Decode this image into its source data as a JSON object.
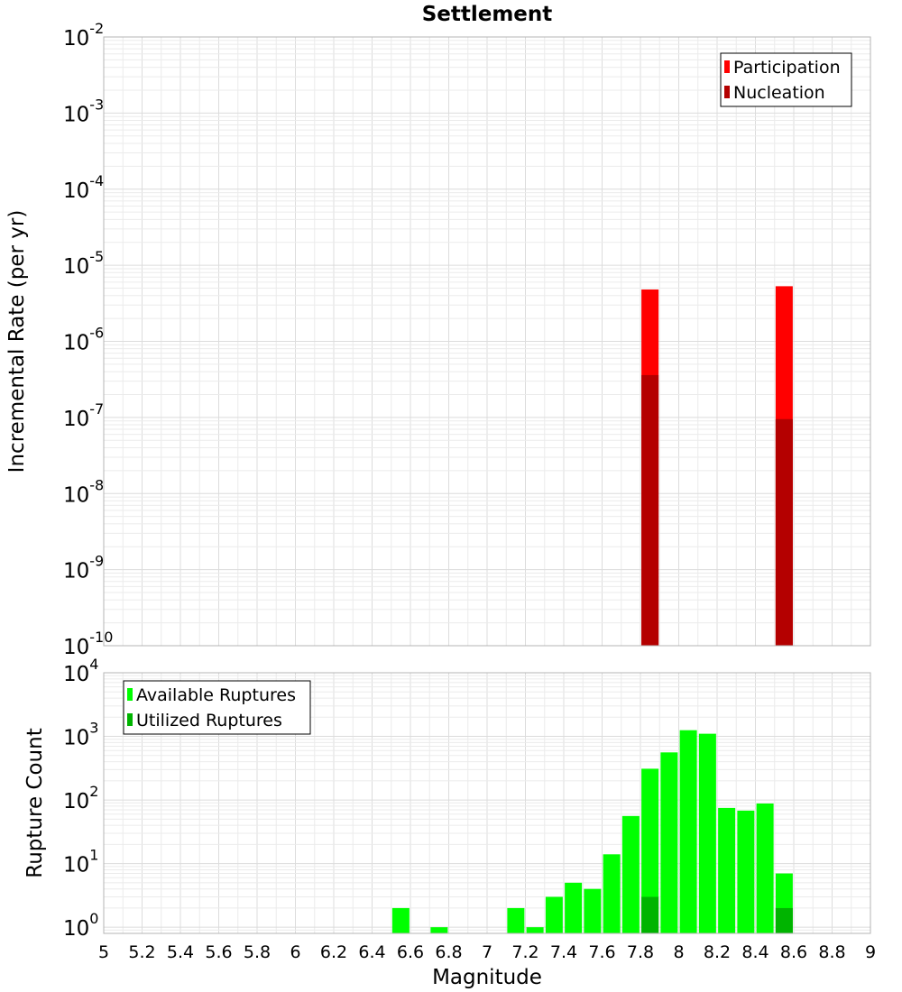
{
  "chart_data": [
    {
      "type": "bar",
      "title": "Settlement",
      "xlabel": "",
      "ylabel": "Incremental Rate (per yr)",
      "yscale": "log",
      "ylim": [
        1e-10,
        0.01
      ],
      "xlim": [
        5,
        9
      ],
      "grid": true,
      "legend_position": "top-right",
      "y_ticks": [
        {
          "base": "10",
          "exp": "-2",
          "value": 0.01
        },
        {
          "base": "10",
          "exp": "-3",
          "value": 0.001
        },
        {
          "base": "10",
          "exp": "-4",
          "value": 0.0001
        },
        {
          "base": "10",
          "exp": "-5",
          "value": 1e-05
        },
        {
          "base": "10",
          "exp": "-6",
          "value": 1e-06
        },
        {
          "base": "10",
          "exp": "-7",
          "value": 1e-07
        },
        {
          "base": "10",
          "exp": "-8",
          "value": 1e-08
        },
        {
          "base": "10",
          "exp": "-9",
          "value": 1e-09
        },
        {
          "base": "10",
          "exp": "-10",
          "value": 1e-10
        }
      ],
      "series": [
        {
          "name": "Participation",
          "color": "#ff0000",
          "points": [
            {
              "x": 7.85,
              "y": 4.8e-06
            },
            {
              "x": 8.55,
              "y": 5.3e-06
            }
          ]
        },
        {
          "name": "Nucleation",
          "color": "#b40000",
          "points": [
            {
              "x": 7.85,
              "y": 3.6e-07
            },
            {
              "x": 8.55,
              "y": 9.5e-08
            }
          ]
        }
      ]
    },
    {
      "type": "bar",
      "title": "",
      "xlabel": "Magnitude",
      "ylabel": "Rupture Count",
      "yscale": "log",
      "ylim": [
        0.8,
        10000
      ],
      "xlim": [
        5,
        9
      ],
      "grid": true,
      "legend_position": "top-left",
      "y_ticks": [
        {
          "base": "10",
          "exp": "4",
          "value": 10000
        },
        {
          "base": "10",
          "exp": "3",
          "value": 1000
        },
        {
          "base": "10",
          "exp": "2",
          "value": 100
        },
        {
          "base": "10",
          "exp": "1",
          "value": 10
        },
        {
          "base": "10",
          "exp": "0",
          "value": 1
        }
      ],
      "x_ticks": [
        "5",
        "5.2",
        "5.4",
        "5.6",
        "5.8",
        "6",
        "6.2",
        "6.4",
        "6.6",
        "6.8",
        "7",
        "7.2",
        "7.4",
        "7.6",
        "7.8",
        "8",
        "8.2",
        "8.4",
        "8.6",
        "8.8",
        "9"
      ],
      "series": [
        {
          "name": "Available Ruptures",
          "color": "#00ff00",
          "points": [
            {
              "x": 6.55,
              "y": 2
            },
            {
              "x": 6.75,
              "y": 1
            },
            {
              "x": 7.15,
              "y": 2
            },
            {
              "x": 7.25,
              "y": 1
            },
            {
              "x": 7.35,
              "y": 3
            },
            {
              "x": 7.45,
              "y": 5
            },
            {
              "x": 7.55,
              "y": 4
            },
            {
              "x": 7.65,
              "y": 14
            },
            {
              "x": 7.75,
              "y": 56
            },
            {
              "x": 7.85,
              "y": 310
            },
            {
              "x": 7.95,
              "y": 560
            },
            {
              "x": 8.05,
              "y": 1250
            },
            {
              "x": 8.15,
              "y": 1100
            },
            {
              "x": 8.25,
              "y": 75
            },
            {
              "x": 8.35,
              "y": 68
            },
            {
              "x": 8.45,
              "y": 88
            },
            {
              "x": 8.55,
              "y": 7
            }
          ]
        },
        {
          "name": "Utilized Ruptures",
          "color": "#00b400",
          "points": [
            {
              "x": 7.85,
              "y": 3
            },
            {
              "x": 8.55,
              "y": 2
            }
          ]
        }
      ]
    }
  ]
}
